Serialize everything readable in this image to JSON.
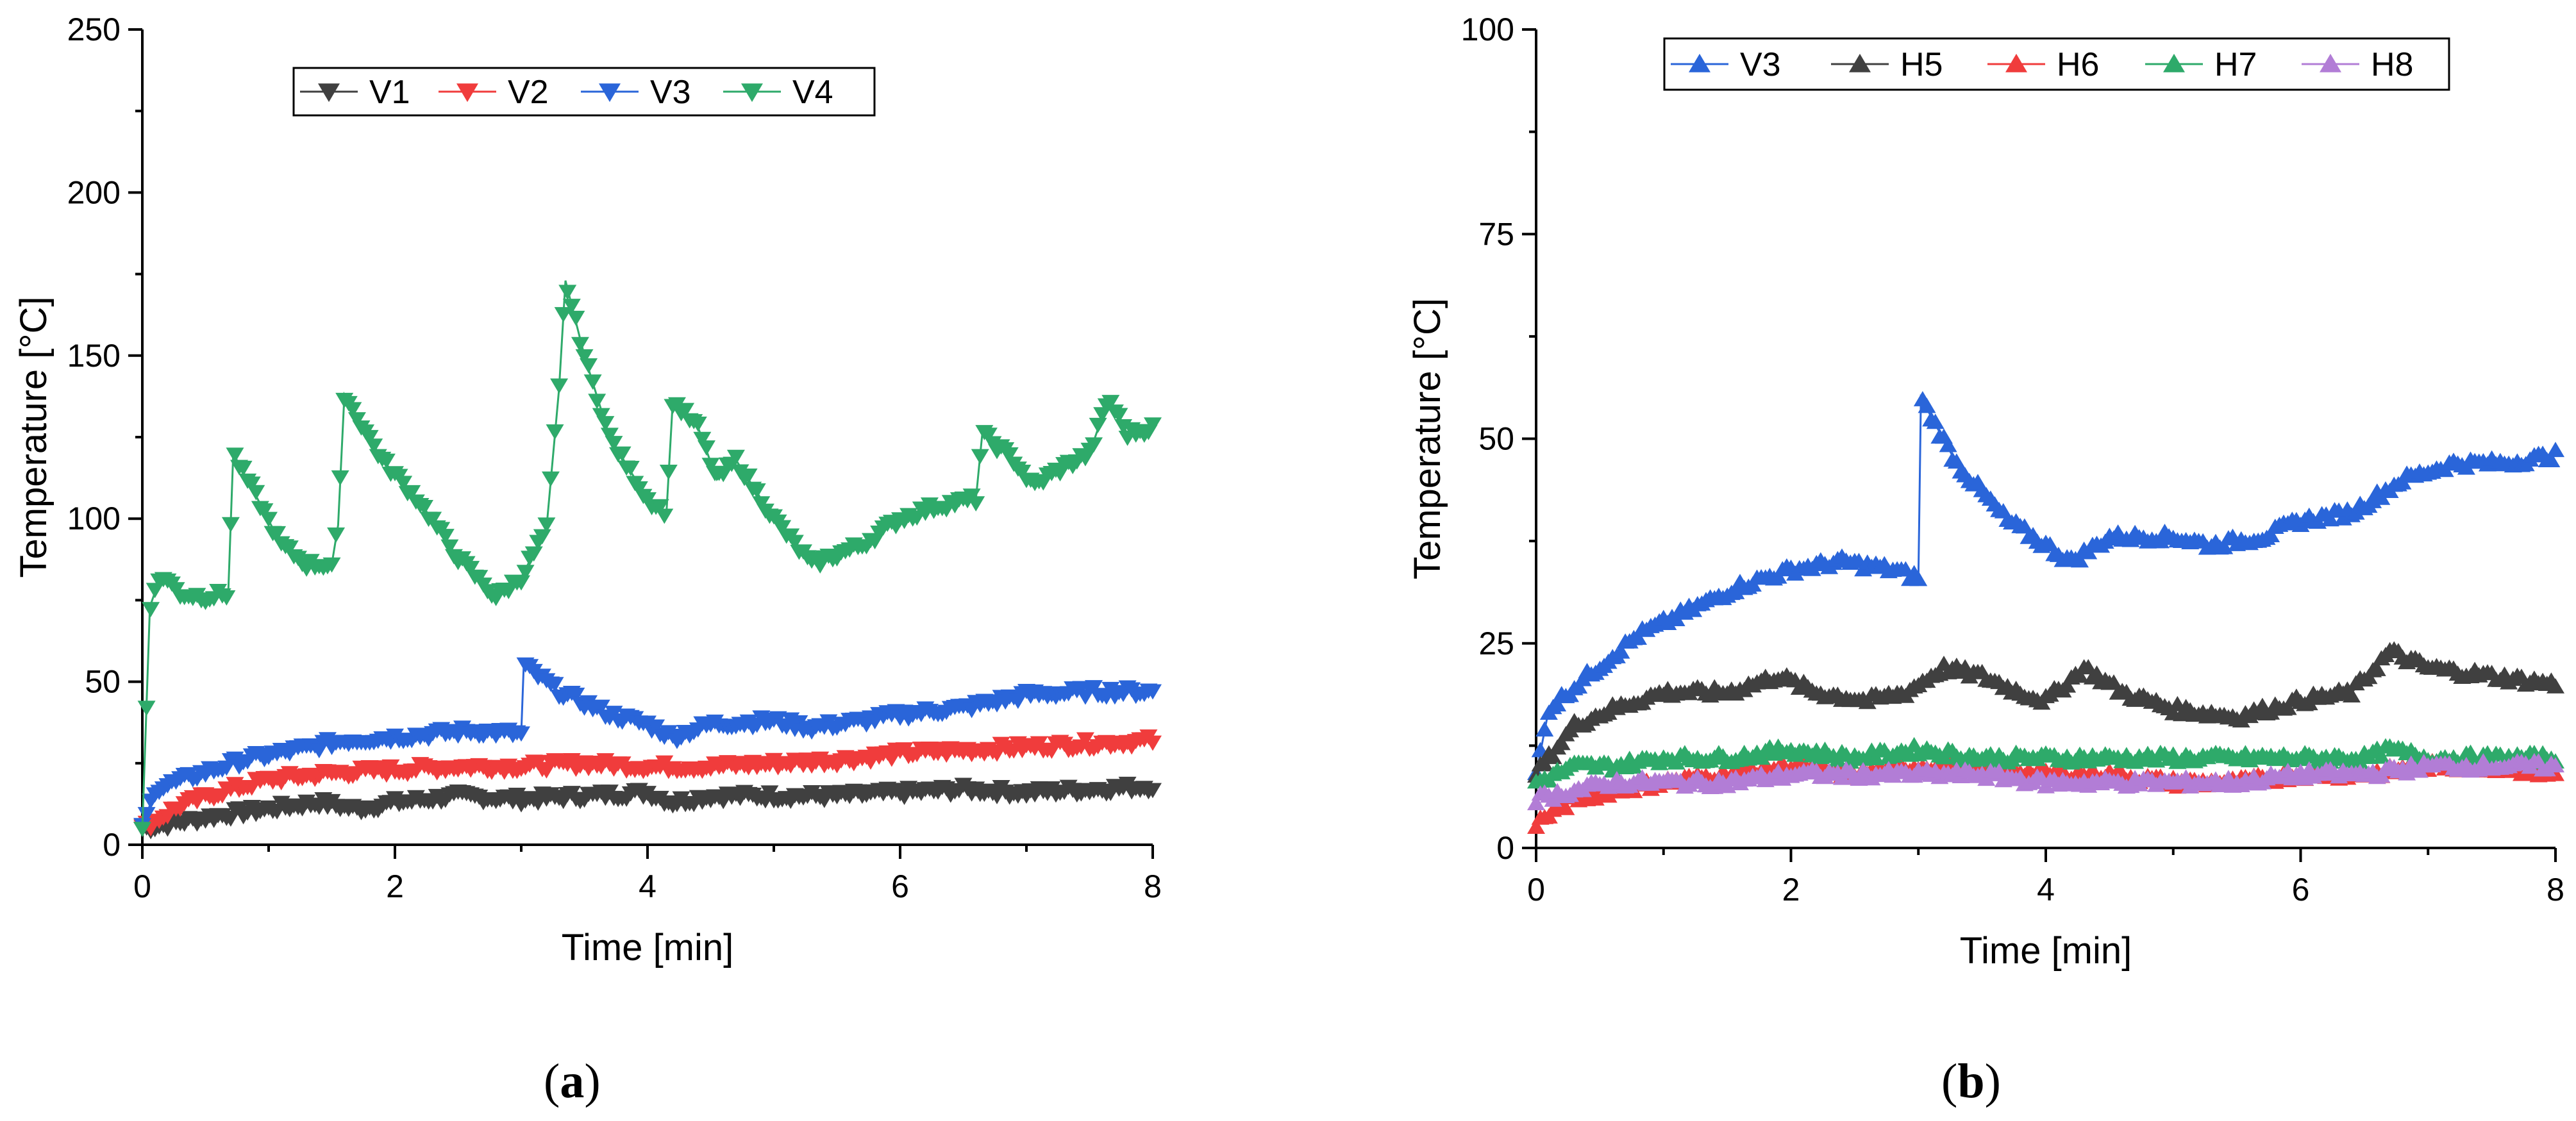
{
  "chart_data": [
    {
      "type": "line",
      "panel_label": "a",
      "xlabel": "Time [min]",
      "ylabel": "Temperature [°C]",
      "xlim": [
        0,
        8
      ],
      "ylim": [
        0,
        250
      ],
      "xticks": [
        0,
        2,
        4,
        6,
        8
      ],
      "yticks": [
        0,
        50,
        100,
        150,
        200,
        250
      ],
      "legend_position": "top-center",
      "series": [
        {
          "name": "V1",
          "color": "#404040",
          "marker": "triangle-down",
          "points": [
            [
              0,
              5
            ],
            [
              0.3,
              7
            ],
            [
              0.6,
              9
            ],
            [
              1,
              11
            ],
            [
              1.4,
              13
            ],
            [
              1.7,
              11
            ],
            [
              2,
              13
            ],
            [
              2.5,
              15
            ],
            [
              3,
              14
            ],
            [
              3.5,
              15
            ],
            [
              4,
              16
            ],
            [
              4.2,
              13
            ],
            [
              4.5,
              15
            ],
            [
              5,
              15
            ],
            [
              5.5,
              15
            ],
            [
              6,
              16
            ],
            [
              6.5,
              17
            ],
            [
              7,
              16
            ],
            [
              7.5,
              17
            ],
            [
              8,
              18
            ]
          ]
        },
        {
          "name": "V2",
          "color": "#f03c3c",
          "marker": "triangle-down",
          "points": [
            [
              0,
              5
            ],
            [
              0.3,
              12
            ],
            [
              0.6,
              16
            ],
            [
              1,
              20
            ],
            [
              1.5,
              22
            ],
            [
              2,
              23
            ],
            [
              2.5,
              24
            ],
            [
              3,
              24
            ],
            [
              3.5,
              25
            ],
            [
              4,
              24
            ],
            [
              4.5,
              24
            ],
            [
              5,
              25
            ],
            [
              5.5,
              26
            ],
            [
              6,
              28
            ],
            [
              6.5,
              29
            ],
            [
              7,
              30
            ],
            [
              7.5,
              31
            ],
            [
              8,
              32
            ]
          ]
        },
        {
          "name": "V3",
          "color": "#2a65d9",
          "marker": "triangle-down",
          "points": [
            [
              0,
              5
            ],
            [
              0.1,
              17
            ],
            [
              0.4,
              21
            ],
            [
              0.8,
              26
            ],
            [
              1.2,
              29
            ],
            [
              1.6,
              32
            ],
            [
              2,
              33
            ],
            [
              2.3,
              34
            ],
            [
              2.6,
              35
            ],
            [
              3,
              34
            ],
            [
              3.02,
              55
            ],
            [
              3.3,
              47
            ],
            [
              3.7,
              40
            ],
            [
              4,
              37
            ],
            [
              4.2,
              33
            ],
            [
              4.5,
              37
            ],
            [
              5,
              38
            ],
            [
              5.3,
              36
            ],
            [
              5.7,
              38
            ],
            [
              6,
              40
            ],
            [
              6.5,
              42
            ],
            [
              7,
              46
            ],
            [
              7.5,
              47
            ],
            [
              8,
              47
            ]
          ]
        },
        {
          "name": "V4",
          "color": "#2eaa6a",
          "marker": "triangle-down",
          "points": [
            [
              0,
              5
            ],
            [
              0.06,
              73
            ],
            [
              0.15,
              83
            ],
            [
              0.3,
              77
            ],
            [
              0.5,
              76
            ],
            [
              0.68,
              77
            ],
            [
              0.72,
              120
            ],
            [
              0.9,
              107
            ],
            [
              1.1,
              92
            ],
            [
              1.3,
              86
            ],
            [
              1.5,
              86
            ],
            [
              1.55,
              98
            ],
            [
              1.6,
              138
            ],
            [
              1.9,
              118
            ],
            [
              2.2,
              105
            ],
            [
              2.5,
              88
            ],
            [
              2.8,
              76
            ],
            [
              3.0,
              82
            ],
            [
              3.2,
              97
            ],
            [
              3.3,
              140
            ],
            [
              3.35,
              173
            ],
            [
              3.5,
              150
            ],
            [
              3.7,
              125
            ],
            [
              4.0,
              106
            ],
            [
              4.15,
              102
            ],
            [
              4.2,
              136
            ],
            [
              4.4,
              128
            ],
            [
              4.55,
              112
            ],
            [
              4.7,
              118
            ],
            [
              5.0,
              100
            ],
            [
              5.3,
              86
            ],
            [
              5.7,
              92
            ],
            [
              6.0,
              100
            ],
            [
              6.3,
              104
            ],
            [
              6.6,
              106
            ],
            [
              6.65,
              126
            ],
            [
              6.9,
              118
            ],
            [
              7.05,
              110
            ],
            [
              7.3,
              116
            ],
            [
              7.5,
              120
            ],
            [
              7.65,
              137
            ],
            [
              7.8,
              126
            ],
            [
              8,
              128
            ]
          ]
        }
      ]
    },
    {
      "type": "line",
      "panel_label": "b",
      "xlabel": "Time [min]",
      "ylabel": "Temperature [°C]",
      "xlim": [
        0,
        8
      ],
      "ylim": [
        0,
        100
      ],
      "xticks": [
        0,
        2,
        4,
        6,
        8
      ],
      "yticks": [
        0,
        25,
        50,
        75,
        100
      ],
      "legend_position": "top-center",
      "series": [
        {
          "name": "V3",
          "color": "#2a65d9",
          "marker": "triangle-up",
          "points": [
            [
              0,
              9
            ],
            [
              0.1,
              17
            ],
            [
              0.4,
              21
            ],
            [
              0.8,
              26
            ],
            [
              1.2,
              29
            ],
            [
              1.6,
              32
            ],
            [
              2,
              34
            ],
            [
              2.4,
              35
            ],
            [
              2.8,
              34
            ],
            [
              3,
              33
            ],
            [
              3.02,
              55
            ],
            [
              3.3,
              47
            ],
            [
              3.7,
              40
            ],
            [
              4,
              37
            ],
            [
              4.2,
              35
            ],
            [
              4.5,
              38
            ],
            [
              5,
              38
            ],
            [
              5.3,
              37
            ],
            [
              5.7,
              38
            ],
            [
              6,
              40
            ],
            [
              6.4,
              41
            ],
            [
              6.8,
              45
            ],
            [
              7.2,
              47
            ],
            [
              7.6,
              47
            ],
            [
              8,
              48
            ]
          ]
        },
        {
          "name": "H5",
          "color": "#404040",
          "marker": "triangle-up",
          "points": [
            [
              0,
              9
            ],
            [
              0.3,
              15
            ],
            [
              0.6,
              17
            ],
            [
              1,
              19
            ],
            [
              1.5,
              19
            ],
            [
              1.9,
              21
            ],
            [
              2.2,
              19
            ],
            [
              2.6,
              18
            ],
            [
              2.9,
              19
            ],
            [
              3.2,
              22
            ],
            [
              3.5,
              21
            ],
            [
              3.8,
              19
            ],
            [
              4,
              18
            ],
            [
              4.3,
              22
            ],
            [
              4.6,
              19
            ],
            [
              5,
              17
            ],
            [
              5.5,
              16
            ],
            [
              6,
              18
            ],
            [
              6.4,
              19
            ],
            [
              6.7,
              24
            ],
            [
              7,
              22
            ],
            [
              7.5,
              21
            ],
            [
              8,
              20
            ]
          ]
        },
        {
          "name": "H6",
          "color": "#f03c3c",
          "marker": "triangle-up",
          "points": [
            [
              0,
              3
            ],
            [
              0.3,
              6
            ],
            [
              0.6,
              7
            ],
            [
              1,
              8
            ],
            [
              1.5,
              9
            ],
            [
              2,
              10
            ],
            [
              2.5,
              9
            ],
            [
              3,
              10
            ],
            [
              3.5,
              10
            ],
            [
              4,
              9
            ],
            [
              4.5,
              9
            ],
            [
              5,
              8
            ],
            [
              5.5,
              8
            ],
            [
              6,
              9
            ],
            [
              6.5,
              9
            ],
            [
              7,
              10
            ],
            [
              7.5,
              10
            ],
            [
              8,
              9
            ]
          ]
        },
        {
          "name": "H7",
          "color": "#2eaa6a",
          "marker": "triangle-up",
          "points": [
            [
              0,
              8
            ],
            [
              0.3,
              10
            ],
            [
              0.6,
              10
            ],
            [
              1,
              11
            ],
            [
              1.5,
              11
            ],
            [
              2,
              12
            ],
            [
              2.5,
              11
            ],
            [
              3,
              12
            ],
            [
              3.5,
              11
            ],
            [
              4,
              11
            ],
            [
              4.5,
              11
            ],
            [
              5,
              11
            ],
            [
              5.5,
              11
            ],
            [
              6,
              11
            ],
            [
              6.5,
              11
            ],
            [
              6.7,
              12
            ],
            [
              7,
              11
            ],
            [
              7.5,
              11
            ],
            [
              8,
              11
            ]
          ]
        },
        {
          "name": "H8",
          "color": "#b27dd6",
          "marker": "triangle-up",
          "points": [
            [
              0,
              6
            ],
            [
              0.3,
              7
            ],
            [
              0.6,
              8
            ],
            [
              1,
              8
            ],
            [
              1.5,
              8
            ],
            [
              2,
              9
            ],
            [
              2.5,
              9
            ],
            [
              3,
              9
            ],
            [
              3.5,
              9
            ],
            [
              4,
              8
            ],
            [
              4.5,
              8
            ],
            [
              5,
              8
            ],
            [
              5.5,
              8
            ],
            [
              6,
              9
            ],
            [
              6.5,
              9
            ],
            [
              7,
              10
            ],
            [
              7.5,
              10
            ],
            [
              8,
              10
            ]
          ]
        }
      ]
    }
  ]
}
